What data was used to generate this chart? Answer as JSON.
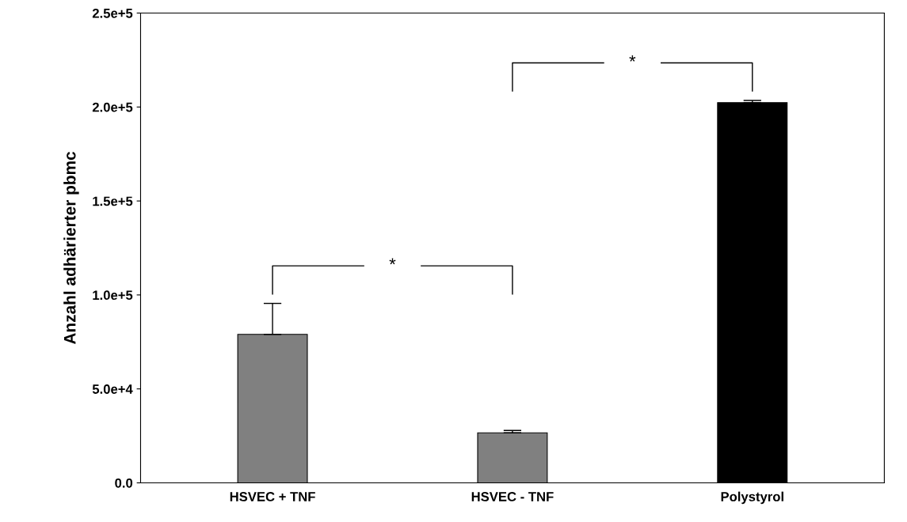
{
  "chart_data": {
    "type": "bar",
    "ylabel": "Anzahl adhärierter pbmc",
    "categories": [
      "HSVEC + TNF",
      "HSVEC - TNF",
      "Polystyrol"
    ],
    "values": [
      79000,
      26600,
      202300
    ],
    "colors": [
      "#808080",
      "#808080",
      "#000000"
    ],
    "errors": [
      16500,
      1300,
      1200
    ],
    "ylim": [
      0,
      250000
    ],
    "yticks": [
      {
        "value": 0,
        "label": "0.0"
      },
      {
        "value": 50000,
        "label": "5.0e+4"
      },
      {
        "value": 100000,
        "label": "1.0e+5"
      },
      {
        "value": 150000,
        "label": "1.5e+5"
      },
      {
        "value": 200000,
        "label": "2.0e+5"
      },
      {
        "value": 250000,
        "label": "2.5e+5"
      }
    ],
    "annotations": [
      "*",
      "*"
    ],
    "grid": false,
    "legend": false
  }
}
